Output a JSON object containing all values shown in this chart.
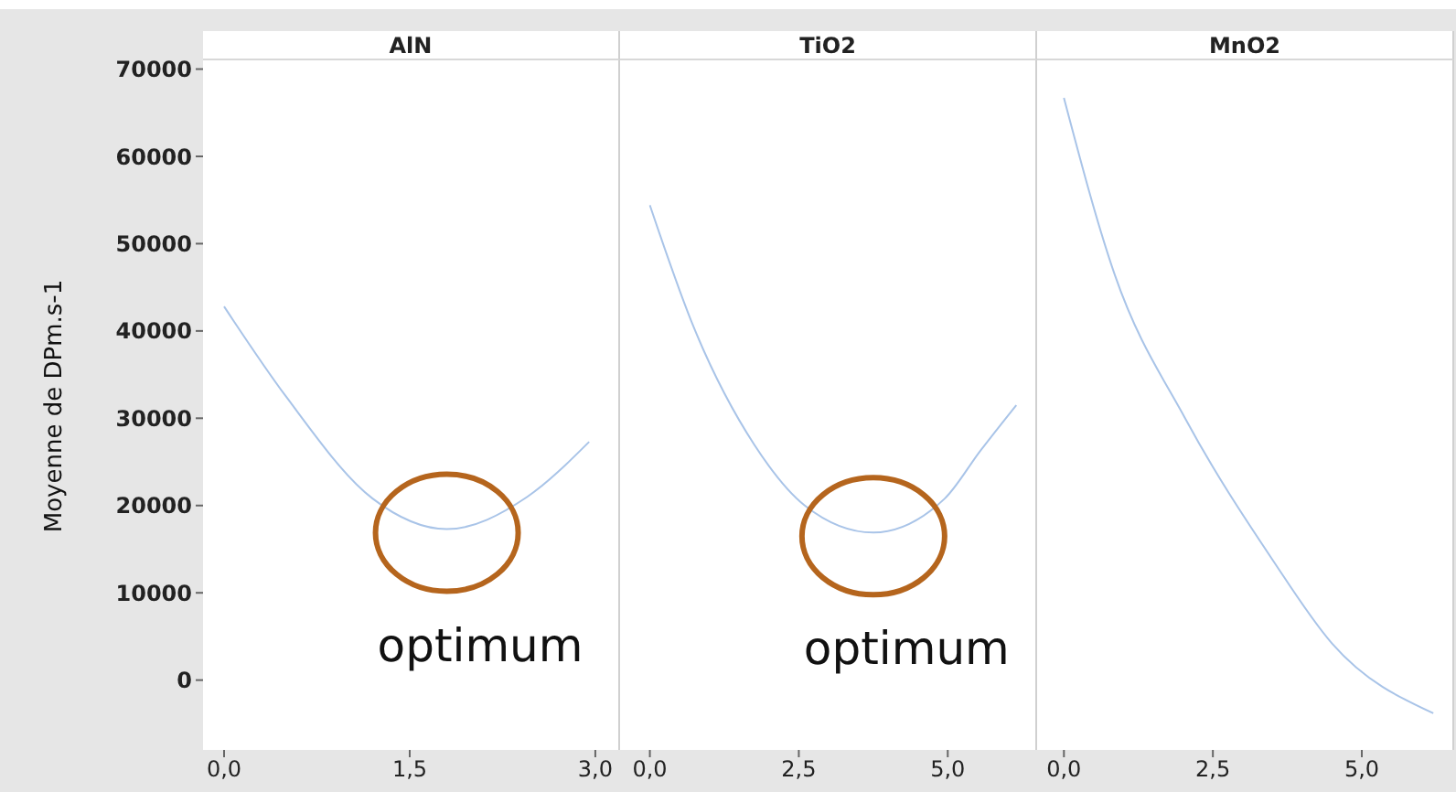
{
  "chart_data": [
    {
      "type": "line",
      "title": "AlN",
      "ylabel": "Moyenne de DPm.s-1",
      "x": [
        0,
        0.5,
        1.2,
        1.8,
        2.45,
        2.95
      ],
      "series": [
        {
          "color": "#a9c4e8",
          "values": [
            42800,
            32500,
            20800,
            17300,
            21000,
            27300
          ]
        }
      ],
      "xlim": [
        -0.17,
        3.2
      ],
      "xticks": [
        {
          "value": 0,
          "label": "0,0"
        },
        {
          "value": 1.5,
          "label": "1,5"
        },
        {
          "value": 3,
          "label": "3,0"
        }
      ],
      "ylim": [
        -8000,
        71000
      ],
      "yticks": [
        0,
        10000,
        20000,
        30000,
        40000,
        50000,
        60000,
        70000
      ],
      "grid": false,
      "annotations": [
        {
          "text": "optimum",
          "x": 1.8,
          "y": 17300
        }
      ]
    },
    {
      "type": "line",
      "title": "TiO2",
      "x": [
        0,
        0.75,
        1.75,
        2.6,
        3.75,
        4.95,
        5.55,
        6.15
      ],
      "series": [
        {
          "color": "#a9c4e8",
          "values": [
            54400,
            40200,
            27000,
            20000,
            16900,
            20800,
            26300,
            31500
          ]
        }
      ],
      "xlim": [
        -0.5,
        6.5
      ],
      "xticks": [
        {
          "value": 0,
          "label": "0,0"
        },
        {
          "value": 2.5,
          "label": "2,5"
        },
        {
          "value": 5,
          "label": "5,0"
        }
      ],
      "ylim": [
        -8000,
        71000
      ],
      "yticks": [
        0,
        10000,
        20000,
        30000,
        40000,
        50000,
        60000,
        70000
      ],
      "tick_labels": "x",
      "grid": false,
      "annotations": [
        {
          "text": "optimum",
          "x": 3.75,
          "y": 16900
        }
      ]
    },
    {
      "type": "line",
      "title": "MnO2",
      "x": [
        0,
        0.85,
        2.05,
        3.5,
        4.5,
        6.2
      ],
      "series": [
        {
          "color": "#a9c4e8",
          "values": [
            66700,
            46500,
            29800,
            13800,
            4200,
            -3800
          ]
        }
      ],
      "xlim": [
        -0.45,
        6.55
      ],
      "xticks": [
        {
          "value": 0,
          "label": "0,0"
        },
        {
          "value": 2.5,
          "label": "2,5"
        },
        {
          "value": 5,
          "label": "5,0"
        }
      ],
      "ylim": [
        -8000,
        71000
      ],
      "yticks": [
        0,
        10000,
        20000,
        30000,
        40000,
        50000,
        60000,
        70000
      ],
      "tick_labels": "x",
      "grid": false
    }
  ]
}
